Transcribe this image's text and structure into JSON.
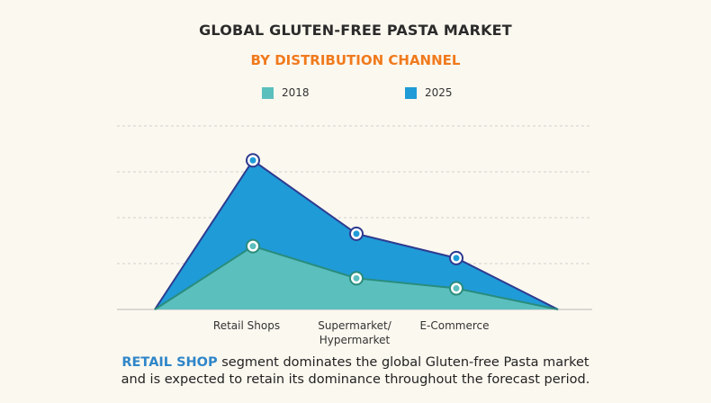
{
  "header": {
    "title": "GLOBAL GLUTEN-FREE PASTA MARKET",
    "subtitle": "BY DISTRIBUTION CHANNEL"
  },
  "legend": [
    {
      "label": "2018",
      "color": "#5bbfbe"
    },
    {
      "label": "2025",
      "color": "#1f9bd7"
    }
  ],
  "chart_data": {
    "type": "area",
    "title": "GLOBAL GLUTEN-FREE PASTA MARKET",
    "subtitle": "BY DISTRIBUTION CHANNEL",
    "categories": [
      "Retail Shops",
      "Supermarket/ Hypermarket",
      "E-Commerce"
    ],
    "category_lines": [
      [
        "Retail Shops"
      ],
      [
        "Supermarket/",
        "Hypermarket"
      ],
      [
        "E-Commerce"
      ]
    ],
    "series": [
      {
        "name": "2018",
        "values": [
          1.38,
          0.68,
          0.46
        ],
        "color": "#5bbfbe",
        "stroke": "#2a8c7c"
      },
      {
        "name": "2025",
        "values": [
          3.25,
          1.65,
          1.12
        ],
        "color": "#1f9bd7",
        "stroke": "#2e3a8f"
      }
    ],
    "ylim": [
      0,
      4
    ],
    "grid": true,
    "legend_position": "top"
  },
  "footer": {
    "highlight": "RETAIL SHOP",
    "line1_rest": " segment dominates the global Gluten-free Pasta market",
    "line2": "and is expected to retain its dominance throughout the forecast period."
  }
}
